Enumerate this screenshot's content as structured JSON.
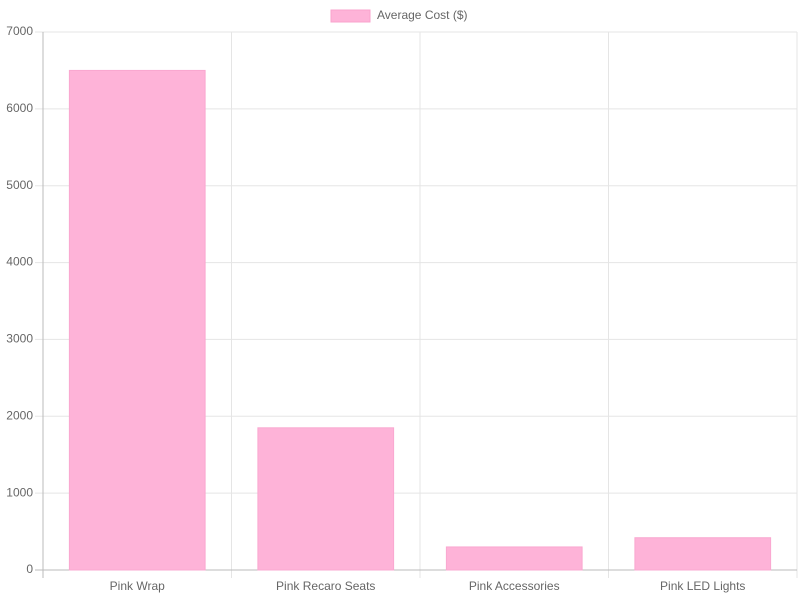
{
  "chart_data": {
    "type": "bar",
    "categories": [
      "Pink Wrap",
      "Pink Recaro Seats",
      "Pink Accessories",
      "Pink LED Lights"
    ],
    "series": [
      {
        "name": "Average Cost ($)",
        "color": "#feb3d8",
        "values": [
          6500,
          1850,
          300,
          420
        ]
      }
    ],
    "ylim": [
      0,
      7000
    ],
    "yticks": [
      0,
      1000,
      2000,
      3000,
      4000,
      5000,
      6000,
      7000
    ],
    "grid": true,
    "legend": "top"
  }
}
